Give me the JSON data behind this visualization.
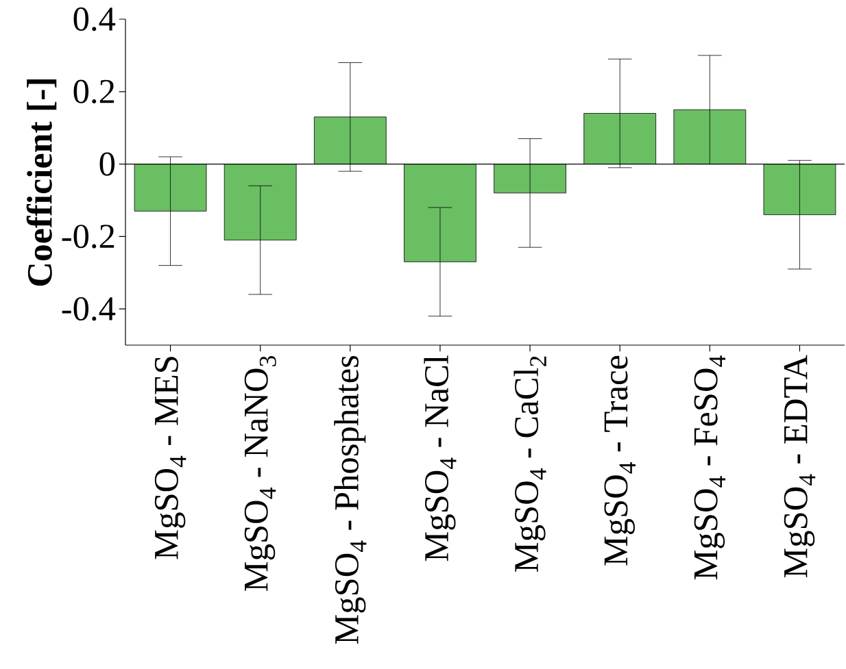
{
  "chart_data": {
    "type": "bar",
    "ylabel": "Coefficient [-]",
    "categories": [
      "MgSO$_{4}$ - MES",
      "MgSO$_{4}$ - NaNO$_{3}$",
      "MgSO$_{4}$ - Phosphates",
      "MgSO$_{4}$ - NaCl",
      "MgSO$_{4}$ - CaCl$_{2}$",
      "MgSO$_{4}$ - Trace",
      "MgSO$_{4}$ - FeSO$_{4}$",
      "MgSO$_{4}$ - EDTA"
    ],
    "values": [
      -0.13,
      -0.21,
      0.13,
      -0.27,
      -0.08,
      0.14,
      0.15,
      -0.14
    ],
    "errors": [
      0.15,
      0.15,
      0.15,
      0.15,
      0.15,
      0.15,
      0.15,
      0.15
    ],
    "color": "#6abf63",
    "ylim": [
      -0.5,
      0.4
    ],
    "yticks": [
      {
        "value": -0.4,
        "label": "-0.4"
      },
      {
        "value": -0.2,
        "label": "-0.2"
      },
      {
        "value": 0,
        "label": "0"
      },
      {
        "value": 0.2,
        "label": "0.2"
      },
      {
        "value": 0.4,
        "label": "0.4"
      }
    ],
    "ref_lines": [
      {
        "axis": "y",
        "value": 0
      }
    ],
    "grid": false
  }
}
